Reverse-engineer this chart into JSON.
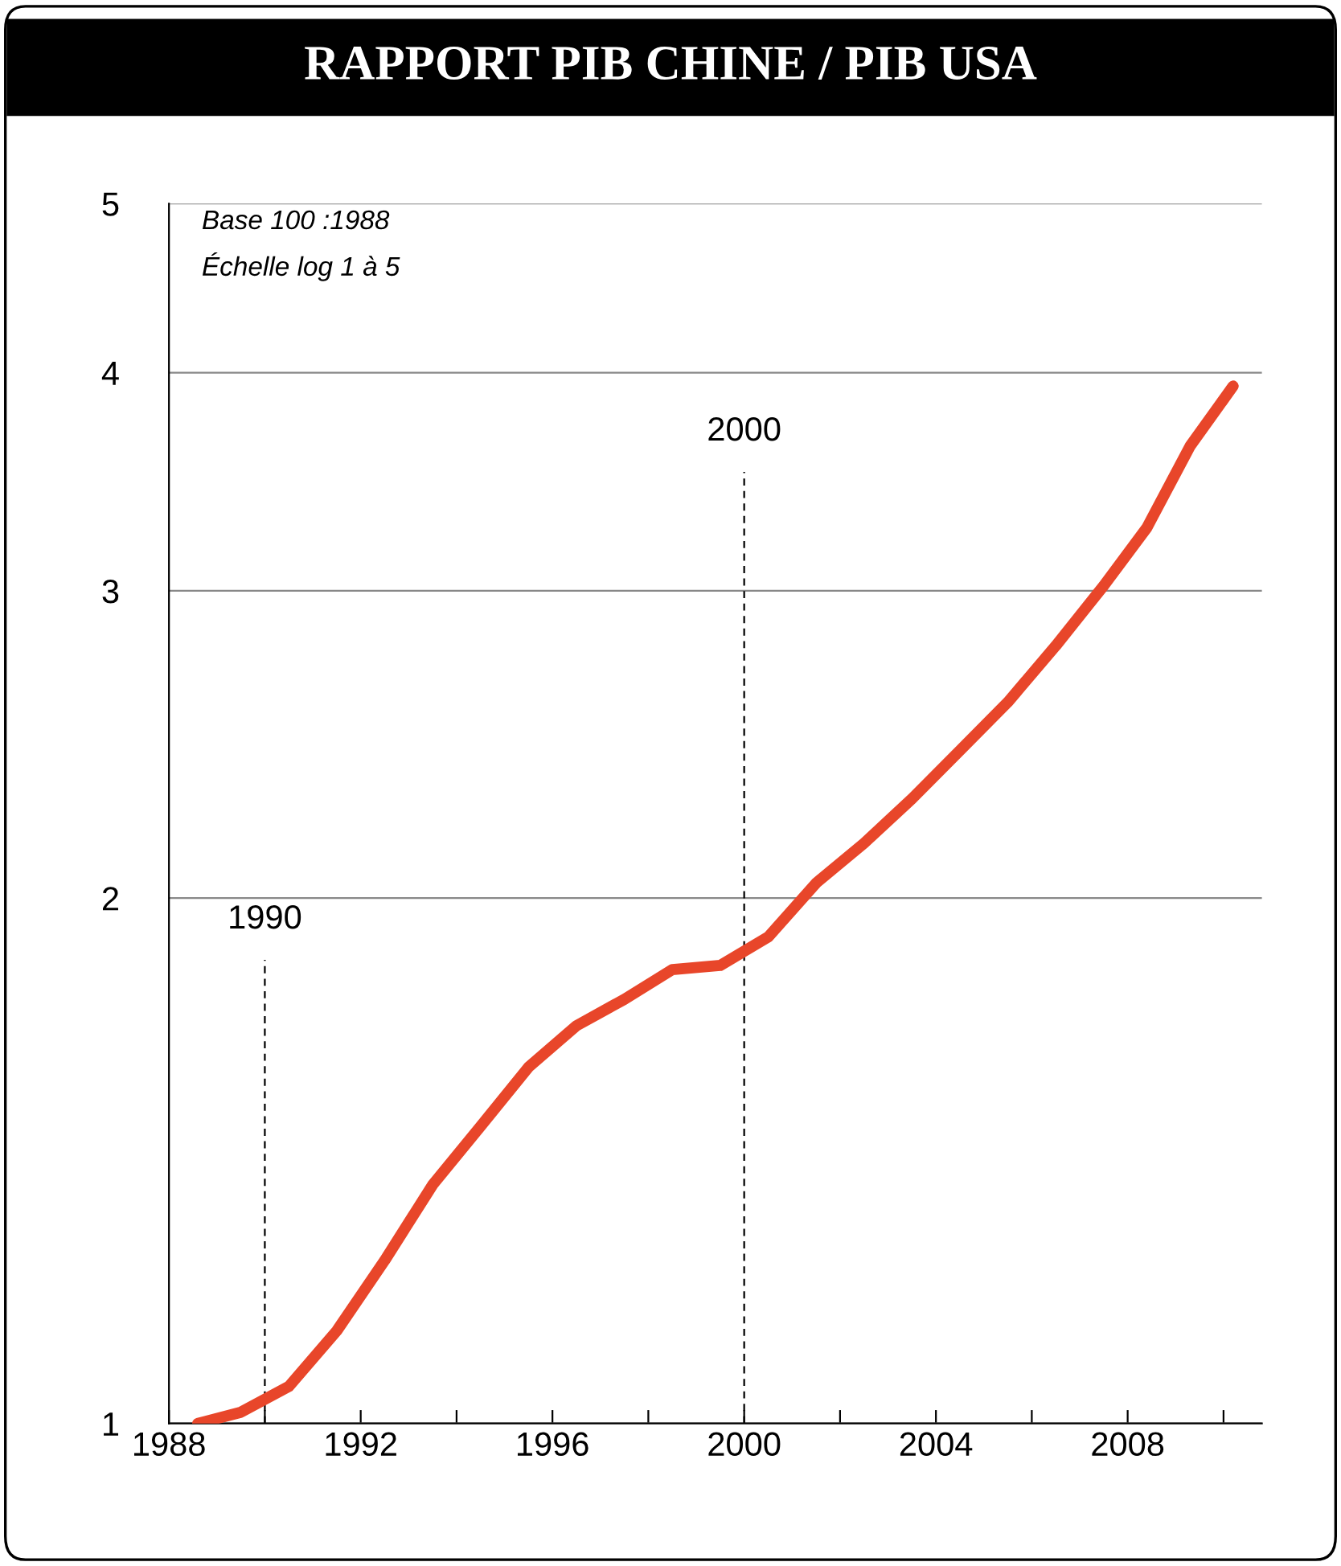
{
  "chart_data": {
    "type": "line",
    "title": "RAPPORT PIB CHINE / PIB USA",
    "annotations": [
      "Base 100 :1988",
      "Échelle log 1 à 5"
    ],
    "x": [
      1988.6,
      1989.5,
      1990.5,
      1991.5,
      1992.5,
      1993.5,
      1994.5,
      1995.5,
      1996.5,
      1997.5,
      1998.5,
      1999.5,
      2000.5,
      2001.5,
      2002.5,
      2003.5,
      2004.5,
      2005.5,
      2006.5,
      2007.5,
      2008.4,
      2009.3,
      2010.2
    ],
    "series": [
      {
        "color": "#e8462a",
        "values": [
          1.0,
          1.015,
          1.05,
          1.13,
          1.24,
          1.37,
          1.48,
          1.6,
          1.69,
          1.75,
          1.82,
          1.83,
          1.9,
          2.04,
          2.15,
          2.28,
          2.43,
          2.59,
          2.79,
          3.02,
          3.26,
          3.63,
          3.93
        ]
      }
    ],
    "xlim": [
      1988,
      2010.8
    ],
    "xticks": [
      {
        "value": 1988,
        "label": "1988"
      },
      {
        "value": 1990,
        "label": null
      },
      {
        "value": 1992,
        "label": "1992"
      },
      {
        "value": 1994,
        "label": null
      },
      {
        "value": 1996,
        "label": "1996"
      },
      {
        "value": 1998,
        "label": null
      },
      {
        "value": 2000,
        "label": "2000"
      },
      {
        "value": 2002,
        "label": null
      },
      {
        "value": 2004,
        "label": "2004"
      },
      {
        "value": 2006,
        "label": null
      },
      {
        "value": 2008,
        "label": "2008"
      },
      {
        "value": 2010,
        "label": null
      }
    ],
    "ylim": [
      1,
      5
    ],
    "yticks": [
      1,
      2,
      3,
      4,
      5
    ],
    "log": "y",
    "grid": "y",
    "ref_lines": [
      {
        "axis": "x",
        "value": 1990,
        "label": "1990",
        "line_style": "dashed",
        "color": "#000000"
      },
      {
        "axis": "x",
        "value": 2000,
        "label": "2000",
        "line_style": "dashed",
        "color": "#000000"
      }
    ]
  }
}
